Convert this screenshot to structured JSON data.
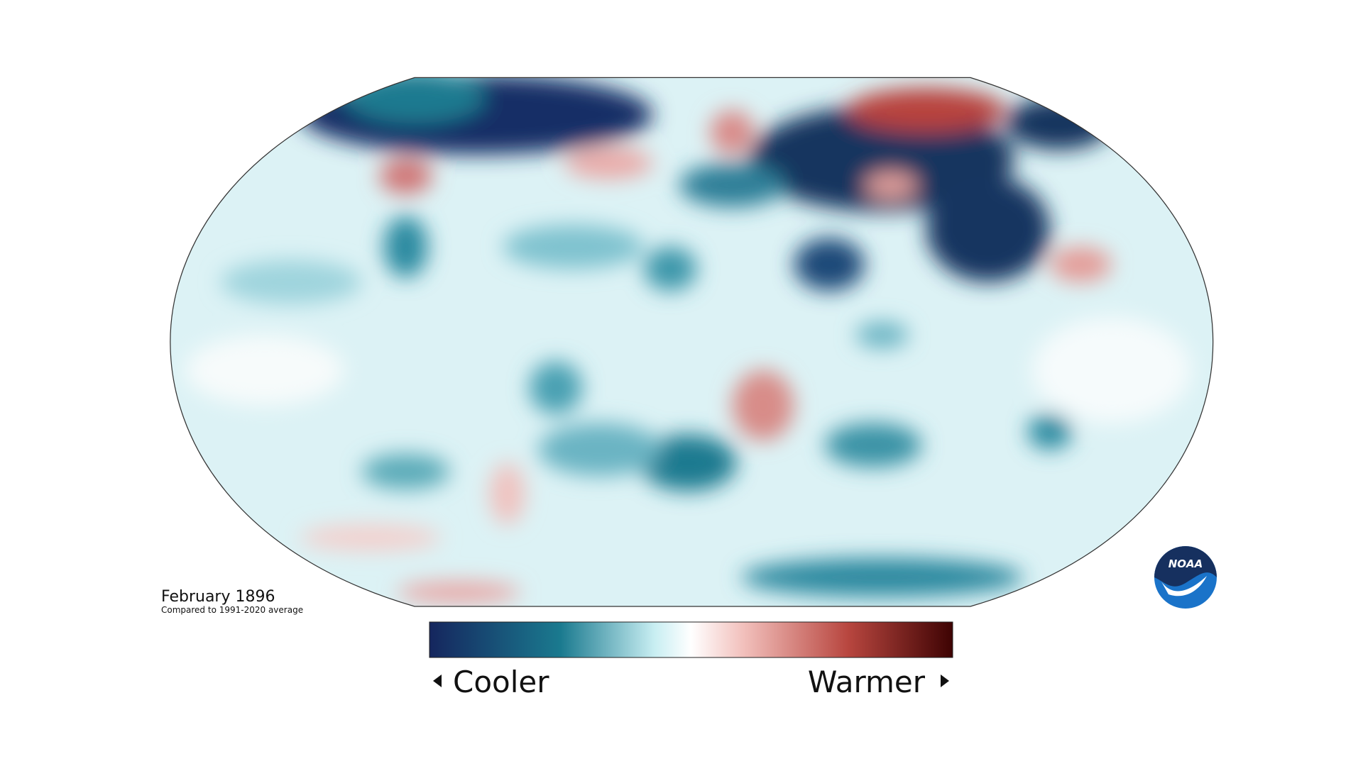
{
  "title": "February 1896",
  "subtitle": "Compared to 1991-2020 average",
  "legend": {
    "low_label": "Cooler",
    "high_label": "Warmer"
  },
  "logo": "NOAA"
}
